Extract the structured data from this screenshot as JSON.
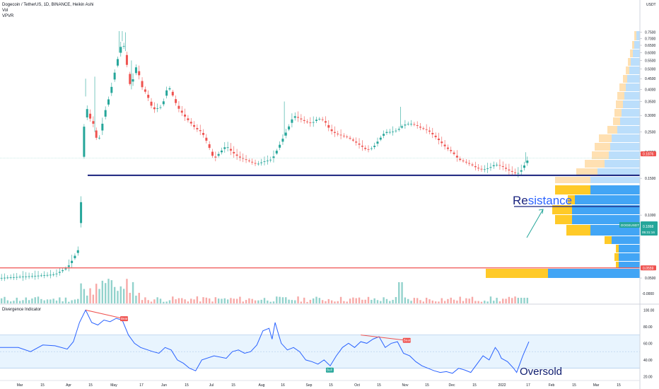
{
  "chart_data": [
    {
      "type": "candlestick",
      "title": "Dogecoin / TetherUS, 1D, BINANCE, Heikin Ashi",
      "indicators_shown": [
        "Vol",
        "VPVR"
      ],
      "currency": "USDT",
      "yscale": "log",
      "ylim": [
        0.047,
        0.76
      ],
      "y_ticks": [
        "0.7500",
        "0.7000",
        "0.6500",
        "0.6000",
        "0.5500",
        "0.5000",
        "0.4500",
        "0.4000",
        "0.3500",
        "0.3000",
        "0.2500",
        "0.2000",
        "0.1500",
        "0.1000",
        "0.0500"
      ],
      "y_tick_values": [
        0.75,
        0.7,
        0.65,
        0.6,
        0.55,
        0.5,
        0.45,
        0.4,
        0.35,
        0.3,
        0.25,
        0.2,
        0.15,
        0.1,
        0.05
      ],
      "x_ticks": [
        "Mar",
        "15",
        "Apr",
        "15",
        "May",
        "17",
        "Jun",
        "15",
        "Jul",
        "15",
        "Aug",
        "16",
        "Sep",
        "15",
        "Oct",
        "15",
        "Nov",
        "15",
        "Dec",
        "15",
        "2022",
        "17",
        "Feb",
        "15",
        "Mar",
        "15"
      ],
      "price_labels": [
        {
          "text": "0.1876",
          "color": "#ef5350"
        },
        {
          "text": "DOGEUSDT",
          "color": "#26a69a"
        },
        {
          "text": "0.1868",
          "color": "#26a69a"
        },
        {
          "text": "05:31:16",
          "color": "#26a69a"
        },
        {
          "text": "0.0559",
          "color": "#ef5350"
        }
      ],
      "volume_axis_label": "-0.0000",
      "horizontal_lines": [
        {
          "value": 0.155,
          "color": "#1a237e"
        },
        {
          "value": 0.0559,
          "color": "#ef5350"
        }
      ],
      "annotations": [
        "Resistance"
      ],
      "series_close_path": [
        [
          0,
          0.05
        ],
        [
          10,
          0.051
        ],
        [
          18,
          0.052
        ],
        [
          22,
          0.056
        ],
        [
          24,
          0.062
        ],
        [
          26,
          0.07
        ],
        [
          27,
          0.19
        ],
        [
          28,
          0.37
        ],
        [
          29,
          0.28
        ],
        [
          30,
          0.3
        ],
        [
          31,
          0.25
        ],
        [
          32,
          0.22
        ],
        [
          33,
          0.25
        ],
        [
          34,
          0.3
        ],
        [
          36,
          0.38
        ],
        [
          38,
          0.52
        ],
        [
          39,
          0.6
        ],
        [
          40,
          0.68
        ],
        [
          41,
          0.61
        ],
        [
          42,
          0.45
        ],
        [
          43,
          0.4
        ],
        [
          44,
          0.5
        ],
        [
          45,
          0.52
        ],
        [
          46,
          0.42
        ],
        [
          48,
          0.38
        ],
        [
          50,
          0.32
        ],
        [
          53,
          0.33
        ],
        [
          55,
          0.42
        ],
        [
          56,
          0.39
        ],
        [
          58,
          0.33
        ],
        [
          61,
          0.29
        ],
        [
          64,
          0.26
        ],
        [
          66,
          0.25
        ],
        [
          68,
          0.22
        ],
        [
          69,
          0.2
        ],
        [
          70,
          0.185
        ],
        [
          72,
          0.2
        ],
        [
          74,
          0.215
        ],
        [
          76,
          0.2
        ],
        [
          78,
          0.19
        ],
        [
          80,
          0.185
        ],
        [
          82,
          0.18
        ],
        [
          84,
          0.175
        ],
        [
          86,
          0.18
        ],
        [
          89,
          0.185
        ],
        [
          91,
          0.21
        ],
        [
          93,
          0.24
        ],
        [
          95,
          0.275
        ],
        [
          96,
          0.3
        ],
        [
          98,
          0.29
        ],
        [
          100,
          0.28
        ],
        [
          102,
          0.275
        ],
        [
          104,
          0.29
        ],
        [
          106,
          0.285
        ],
        [
          108,
          0.255
        ],
        [
          110,
          0.245
        ],
        [
          112,
          0.24
        ],
        [
          114,
          0.235
        ],
        [
          116,
          0.225
        ],
        [
          118,
          0.215
        ],
        [
          120,
          0.205
        ],
        [
          122,
          0.21
        ],
        [
          124,
          0.23
        ],
        [
          126,
          0.25
        ],
        [
          128,
          0.25
        ],
        [
          130,
          0.255
        ],
        [
          132,
          0.27
        ],
        [
          134,
          0.275
        ],
        [
          136,
          0.27
        ],
        [
          138,
          0.26
        ],
        [
          140,
          0.255
        ],
        [
          142,
          0.24
        ],
        [
          144,
          0.225
        ],
        [
          146,
          0.21
        ],
        [
          148,
          0.2
        ],
        [
          150,
          0.185
        ],
        [
          152,
          0.18
        ],
        [
          154,
          0.175
        ],
        [
          156,
          0.168
        ],
        [
          158,
          0.165
        ],
        [
          160,
          0.168
        ],
        [
          162,
          0.175
        ],
        [
          164,
          0.172
        ],
        [
          166,
          0.165
        ],
        [
          168,
          0.16
        ],
        [
          169,
          0.158
        ],
        [
          170,
          0.16
        ],
        [
          171,
          0.168
        ],
        [
          172,
          0.178
        ],
        [
          173,
          0.187
        ]
      ]
    },
    {
      "type": "line",
      "title": "Divergence Indicator",
      "ylim": [
        17,
        102
      ],
      "y_ticks": [
        "100.00",
        "80.00",
        "60.00",
        "40.00",
        "20.00"
      ],
      "y_tick_values": [
        100,
        80,
        60,
        40,
        20
      ],
      "band": [
        30,
        70
      ],
      "midline": 50,
      "labels": [
        {
          "text": "Bear",
          "color": "#ef5350"
        },
        {
          "text": "Bull",
          "color": "#26a69a"
        },
        {
          "text": "Bear",
          "color": "#ef5350"
        }
      ],
      "annotations": [
        "Oversold"
      ],
      "values": [
        [
          0,
          55
        ],
        [
          6,
          55
        ],
        [
          10,
          50
        ],
        [
          14,
          58
        ],
        [
          18,
          57
        ],
        [
          22,
          53
        ],
        [
          24,
          62
        ],
        [
          26,
          85
        ],
        [
          28,
          100
        ],
        [
          30,
          85
        ],
        [
          32,
          82
        ],
        [
          34,
          88
        ],
        [
          36,
          86
        ],
        [
          38,
          90
        ],
        [
          40,
          88
        ],
        [
          42,
          70
        ],
        [
          44,
          60
        ],
        [
          46,
          55
        ],
        [
          50,
          50
        ],
        [
          52,
          48
        ],
        [
          54,
          55
        ],
        [
          56,
          52
        ],
        [
          58,
          40
        ],
        [
          60,
          36
        ],
        [
          62,
          30
        ],
        [
          64,
          27
        ],
        [
          66,
          40
        ],
        [
          70,
          45
        ],
        [
          74,
          42
        ],
        [
          76,
          50
        ],
        [
          78,
          52
        ],
        [
          80,
          48
        ],
        [
          82,
          50
        ],
        [
          84,
          58
        ],
        [
          86,
          75
        ],
        [
          88,
          78
        ],
        [
          89,
          65
        ],
        [
          90,
          85
        ],
        [
          91,
          72
        ],
        [
          92,
          60
        ],
        [
          94,
          52
        ],
        [
          96,
          55
        ],
        [
          98,
          50
        ],
        [
          100,
          40
        ],
        [
          102,
          38
        ],
        [
          104,
          35
        ],
        [
          106,
          40
        ],
        [
          108,
          33
        ],
        [
          110,
          45
        ],
        [
          112,
          55
        ],
        [
          114,
          60
        ],
        [
          116,
          55
        ],
        [
          118,
          62
        ],
        [
          120,
          60
        ],
        [
          122,
          65
        ],
        [
          124,
          68
        ],
        [
          126,
          55
        ],
        [
          128,
          60
        ],
        [
          130,
          62
        ],
        [
          132,
          48
        ],
        [
          134,
          45
        ],
        [
          136,
          38
        ],
        [
          138,
          33
        ],
        [
          140,
          30
        ],
        [
          142,
          27
        ],
        [
          144,
          25
        ],
        [
          146,
          26
        ],
        [
          148,
          24
        ],
        [
          150,
          30
        ],
        [
          152,
          28
        ],
        [
          154,
          25
        ],
        [
          156,
          35
        ],
        [
          158,
          45
        ],
        [
          160,
          40
        ],
        [
          162,
          55
        ],
        [
          163,
          50
        ],
        [
          164,
          42
        ],
        [
          166,
          38
        ],
        [
          168,
          30
        ],
        [
          169,
          25
        ],
        [
          171,
          45
        ],
        [
          173,
          62
        ]
      ]
    }
  ]
}
